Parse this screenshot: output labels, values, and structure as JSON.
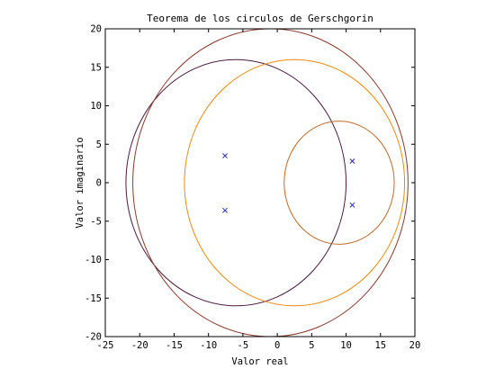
{
  "chart_data": {
    "type": "scatter",
    "title": "Teorema de los circulos de Gerschgorin",
    "xlabel": "Valor real",
    "ylabel": "Valor imaginario",
    "xlim": [
      -25,
      20
    ],
    "ylim": [
      -20,
      20
    ],
    "xticks": [
      -25,
      -20,
      -15,
      -10,
      -5,
      0,
      5,
      10,
      15,
      20
    ],
    "yticks": [
      -20,
      -15,
      -10,
      -5,
      0,
      5,
      10,
      15,
      20
    ],
    "grid": false,
    "circles": [
      {
        "center": [
          -6,
          0
        ],
        "radius": 16,
        "color": "#4b1a3e"
      },
      {
        "center": [
          -1,
          0
        ],
        "radius": 20,
        "color": "#8b3b2b"
      },
      {
        "center": [
          2.5,
          0
        ],
        "radius": 16,
        "color": "#ee8a10"
      },
      {
        "center": [
          9,
          0
        ],
        "radius": 8,
        "color": "#c06a2a"
      }
    ],
    "eigenvalues": {
      "marker": "x",
      "color": "#2a2ad8",
      "points": [
        {
          "x": -7.6,
          "y": 3.5
        },
        {
          "x": -7.6,
          "y": -3.6
        },
        {
          "x": 10.9,
          "y": 2.8
        },
        {
          "x": 10.9,
          "y": -2.9
        }
      ]
    }
  }
}
